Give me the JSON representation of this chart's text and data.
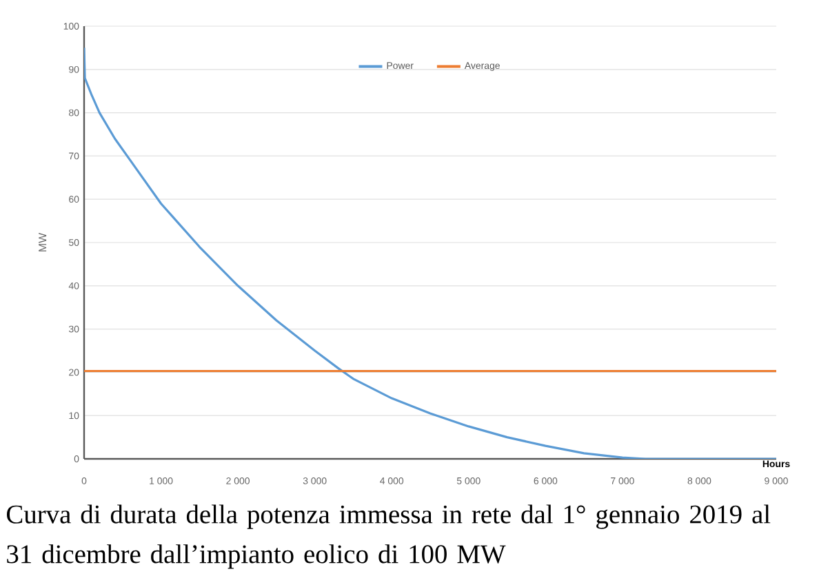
{
  "chart_data": {
    "type": "line",
    "xlabel": "Hours",
    "ylabel": "MW",
    "xlim": [
      0,
      9000
    ],
    "ylim": [
      0,
      100
    ],
    "xticks": [
      0,
      {
        "value": 1000,
        "label": "1 000"
      },
      {
        "value": 2000,
        "label": "2 000"
      },
      {
        "value": 3000,
        "label": "3 000"
      },
      {
        "value": 4000,
        "label": "4 000"
      },
      {
        "value": 5000,
        "label": "5 000"
      },
      {
        "value": 6000,
        "label": "6 000"
      },
      {
        "value": 7000,
        "label": "7 000"
      },
      {
        "value": 8000,
        "label": "8 000"
      },
      {
        "value": 9000,
        "label": "9 000"
      }
    ],
    "yticks": [
      0,
      10,
      20,
      30,
      40,
      50,
      60,
      70,
      80,
      90,
      100
    ],
    "grid": "y",
    "legend": "top",
    "series": [
      {
        "name": "Power",
        "color": "#5b9bd5",
        "x": [
          0,
          10,
          100,
          200,
          400,
          600,
          800,
          1000,
          1200,
          1500,
          2000,
          2500,
          3000,
          3300,
          3500,
          4000,
          4500,
          5000,
          5500,
          6000,
          6500,
          7000,
          7300,
          8000,
          9000
        ],
        "values": [
          95,
          88,
          84,
          80,
          74,
          69,
          64,
          59,
          55,
          49,
          40,
          32,
          25,
          21,
          18.5,
          14,
          10.5,
          7.5,
          5,
          3,
          1.3,
          0.3,
          0,
          0,
          0
        ]
      },
      {
        "name": "Average",
        "color": "#ed7d31",
        "x": [
          0,
          9000
        ],
        "values": [
          20.3,
          20.3
        ]
      }
    ],
    "annotations": [
      "Curva di durata della potenza immessa in rete dal 1° gennaio 2019 al 31 dicembre dall’impianto eolico di 100 MW"
    ]
  }
}
